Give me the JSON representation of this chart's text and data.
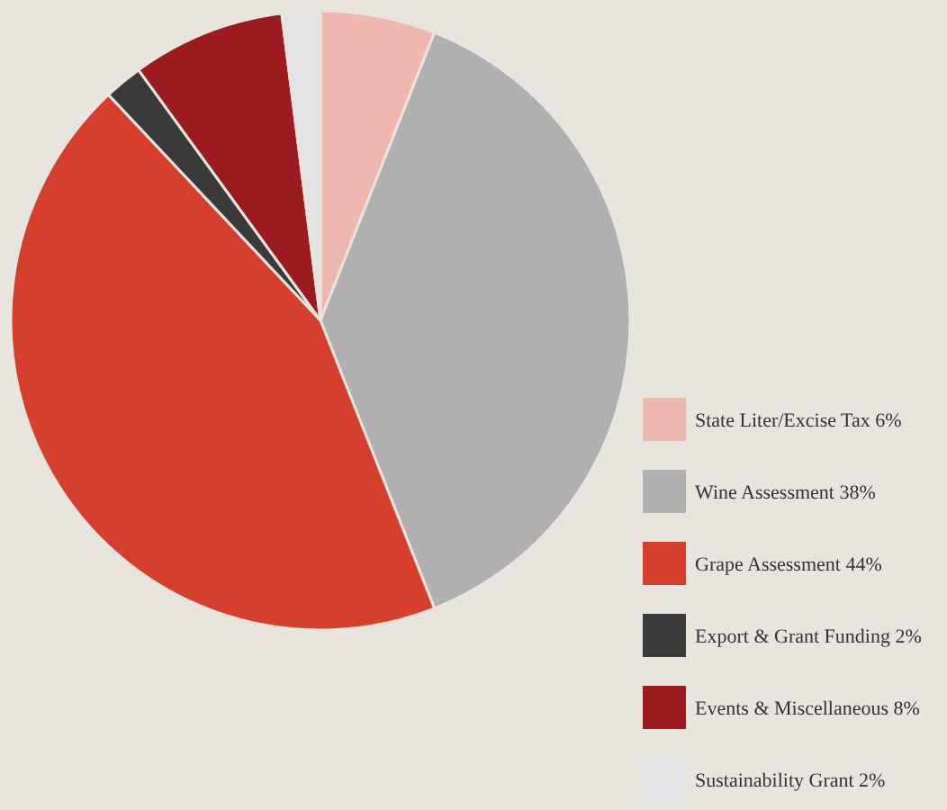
{
  "chart_data": {
    "type": "pie",
    "categories": [
      "State Liter/Excise Tax 6%",
      "Wine Assessment 38%",
      "Grape Assessment 44%",
      "Export & Grant Funding 2%",
      "Events & Miscellaneous 8%",
      "Sustainability Grant 2%"
    ],
    "values": [
      6,
      38,
      44,
      2,
      8,
      2
    ],
    "colors": [
      "#efb8ae",
      "#b0b0b0",
      "#d63f2c",
      "#3a3a3a",
      "#9b1b1e",
      "#e2e3e5"
    ],
    "legend": "bottom right"
  }
}
